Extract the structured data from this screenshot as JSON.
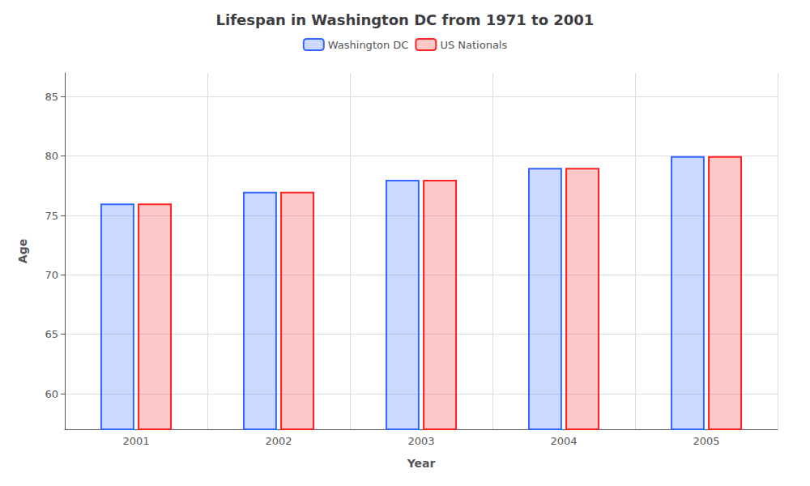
{
  "chart_data": {
    "type": "bar",
    "title": "Lifespan in Washington DC from 1971 to 2001",
    "xlabel": "Year",
    "ylabel": "Age",
    "categories": [
      "2001",
      "2002",
      "2003",
      "2004",
      "2005"
    ],
    "series": [
      {
        "name": "Washington DC",
        "color": "#3366ff",
        "values": [
          76,
          77,
          78,
          79,
          80
        ]
      },
      {
        "name": "US Nationals",
        "color": "#ff2222",
        "values": [
          76,
          77,
          78,
          79,
          80
        ]
      }
    ],
    "ylim": [
      57,
      87
    ],
    "yticks": [
      60,
      65,
      70,
      75,
      80,
      85
    ],
    "grid": true,
    "legend": "top"
  }
}
